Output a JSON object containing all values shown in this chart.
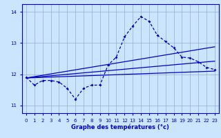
{
  "bg_color": "#cce5ff",
  "grid_color": "#99aacc",
  "line_color": "#0000cc",
  "title": "Graphe des températures (°c)",
  "xlim": [
    -0.5,
    23.5
  ],
  "ylim": [
    10.75,
    14.25
  ],
  "yticks": [
    11,
    12,
    13,
    14
  ],
  "xticks": [
    0,
    1,
    2,
    3,
    4,
    5,
    6,
    7,
    8,
    9,
    10,
    11,
    12,
    13,
    14,
    15,
    16,
    17,
    18,
    19,
    20,
    21,
    22,
    23
  ],
  "curve1_x": [
    0,
    1,
    2,
    3,
    4,
    5,
    6,
    7,
    8,
    9,
    10,
    11,
    12,
    13,
    14,
    15,
    16,
    17,
    18,
    19,
    20,
    21,
    22,
    23
  ],
  "curve1_y": [
    11.9,
    11.65,
    11.8,
    11.8,
    11.75,
    11.55,
    11.2,
    11.55,
    11.65,
    11.65,
    12.3,
    12.55,
    13.2,
    13.55,
    13.85,
    13.7,
    13.25,
    13.05,
    12.85,
    12.55,
    12.52,
    12.4,
    12.22,
    12.15
  ],
  "line1_x": [
    0,
    23
  ],
  "line1_y": [
    11.88,
    12.1
  ],
  "line2_x": [
    0,
    23
  ],
  "line2_y": [
    11.88,
    12.42
  ],
  "line3_x": [
    0,
    23
  ],
  "line3_y": [
    11.88,
    12.88
  ]
}
